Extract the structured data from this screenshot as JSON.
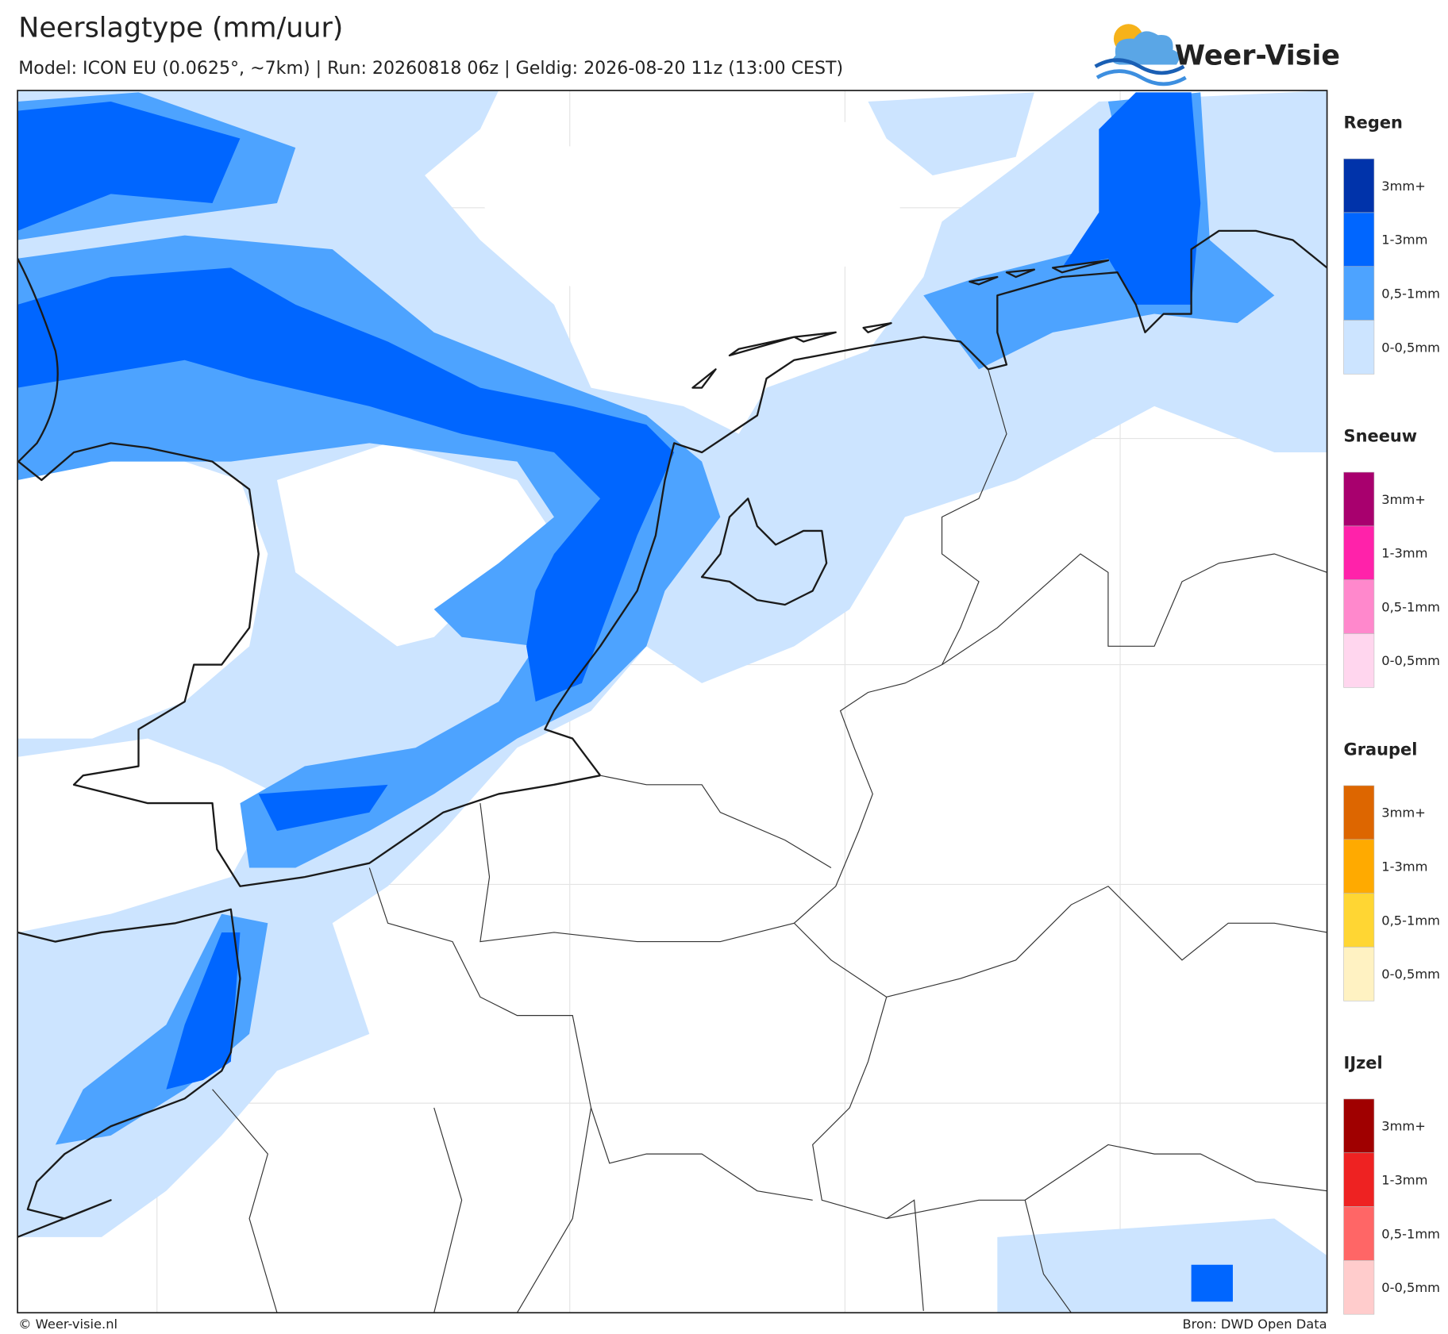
{
  "header": {
    "title": "Neerslagtype (mm/uur)",
    "subtitle": "Model: ICON EU (0.0625°, ~7km)  |  Run: 20260818 06z  |  Geldig: 2026-08-20 11z (13:00 CEST)"
  },
  "logo": {
    "text": "Weer-Visie"
  },
  "legend": {
    "groups": [
      {
        "title": "Regen",
        "items": [
          {
            "label": "3mm+",
            "color": "#0033aa"
          },
          {
            "label": "1-3mm",
            "color": "#0066ff"
          },
          {
            "label": "0,5-1mm",
            "color": "#4da3ff"
          },
          {
            "label": "0-0,5mm",
            "color": "#cce4ff"
          }
        ]
      },
      {
        "title": "Sneeuw",
        "items": [
          {
            "label": "3mm+",
            "color": "#a8006e"
          },
          {
            "label": "1-3mm",
            "color": "#ff22aa"
          },
          {
            "label": "0,5-1mm",
            "color": "#ff88cc"
          },
          {
            "label": "0-0,5mm",
            "color": "#ffd6ee"
          }
        ]
      },
      {
        "title": "Graupel",
        "items": [
          {
            "label": "3mm+",
            "color": "#dd6600"
          },
          {
            "label": "1-3mm",
            "color": "#ffaa00"
          },
          {
            "label": "0,5-1mm",
            "color": "#ffd633"
          },
          {
            "label": "0-0,5mm",
            "color": "#fff2c2"
          }
        ]
      },
      {
        "title": "IJzel",
        "items": [
          {
            "label": "3mm+",
            "color": "#a00000"
          },
          {
            "label": "1-3mm",
            "color": "#ee2222"
          },
          {
            "label": "0,5-1mm",
            "color": "#ff6666"
          },
          {
            "label": "0-0,5mm",
            "color": "#ffcccc"
          }
        ]
      }
    ]
  },
  "footer": {
    "left": "© Weer-visie.nl",
    "right": "Bron: DWD Open Data"
  }
}
